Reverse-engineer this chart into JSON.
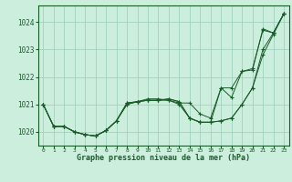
{
  "title": "Graphe pression niveau de la mer (hPa)",
  "background_color": "#cceedd",
  "plot_bg_color": "#cceedd",
  "grid_color": "#99ccbb",
  "line_color": "#1a5c2a",
  "xlim": [
    -0.5,
    23.5
  ],
  "ylim": [
    1019.5,
    1024.6
  ],
  "yticks": [
    1020,
    1021,
    1022,
    1023,
    1024
  ],
  "xticks": [
    0,
    1,
    2,
    3,
    4,
    5,
    6,
    7,
    8,
    9,
    10,
    11,
    12,
    13,
    14,
    15,
    16,
    17,
    18,
    19,
    20,
    21,
    22,
    23
  ],
  "series": [
    [
      1021.0,
      1020.2,
      1020.2,
      1020.0,
      1019.9,
      1019.85,
      1020.05,
      1020.4,
      1021.05,
      1021.1,
      1021.15,
      1021.15,
      1021.15,
      1021.05,
      1021.05,
      1020.65,
      1020.5,
      1021.6,
      1021.25,
      1022.2,
      1022.25,
      1023.75,
      1023.6,
      1024.3
    ],
    [
      1021.0,
      1020.2,
      1020.2,
      1020.0,
      1019.9,
      1019.85,
      1020.05,
      1020.4,
      1021.0,
      1021.1,
      1021.15,
      1021.15,
      1021.2,
      1021.1,
      1020.5,
      1020.35,
      1020.35,
      1020.4,
      1020.5,
      1021.0,
      1021.6,
      1022.8,
      1023.55,
      1024.3
    ],
    [
      1021.0,
      1020.2,
      1020.2,
      1020.0,
      1019.9,
      1019.85,
      1020.05,
      1020.4,
      1021.0,
      1021.1,
      1021.15,
      1021.15,
      1021.2,
      1021.1,
      1020.5,
      1020.35,
      1020.35,
      1020.4,
      1020.5,
      1021.0,
      1021.6,
      1023.0,
      1023.6,
      1024.3
    ],
    [
      1021.0,
      1020.2,
      1020.2,
      1020.0,
      1019.9,
      1019.85,
      1020.05,
      1020.4,
      1021.05,
      1021.1,
      1021.2,
      1021.2,
      1021.15,
      1021.0,
      1020.5,
      1020.35,
      1020.35,
      1021.6,
      1021.6,
      1022.2,
      1022.3,
      1023.7,
      1023.6,
      1024.3
    ]
  ]
}
